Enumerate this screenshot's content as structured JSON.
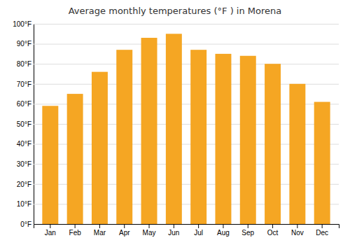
{
  "chart_data": {
    "type": "bar",
    "title": "Average monthly temperatures (°F ) in Morena",
    "categories": [
      "Jan",
      "Feb",
      "Mar",
      "Apr",
      "May",
      "Jun",
      "Jul",
      "Aug",
      "Sep",
      "Oct",
      "Nov",
      "Dec"
    ],
    "values": [
      59,
      65,
      76,
      87,
      93,
      95,
      87,
      85,
      84,
      80,
      70,
      61
    ],
    "color": "#F5A623",
    "ylim": [
      0,
      100
    ],
    "yticks": [
      {
        "value": 0,
        "label": "0°F"
      },
      {
        "value": 10,
        "label": "10°F"
      },
      {
        "value": 20,
        "label": "20°F"
      },
      {
        "value": 30,
        "label": "30°F"
      },
      {
        "value": 40,
        "label": "40°F"
      },
      {
        "value": 50,
        "label": "50°F"
      },
      {
        "value": 60,
        "label": "60°F"
      },
      {
        "value": 70,
        "label": "70°F"
      },
      {
        "value": 80,
        "label": "80°F"
      },
      {
        "value": 90,
        "label": "90°F"
      },
      {
        "value": 100,
        "label": "100°F"
      }
    ],
    "grid": true
  }
}
